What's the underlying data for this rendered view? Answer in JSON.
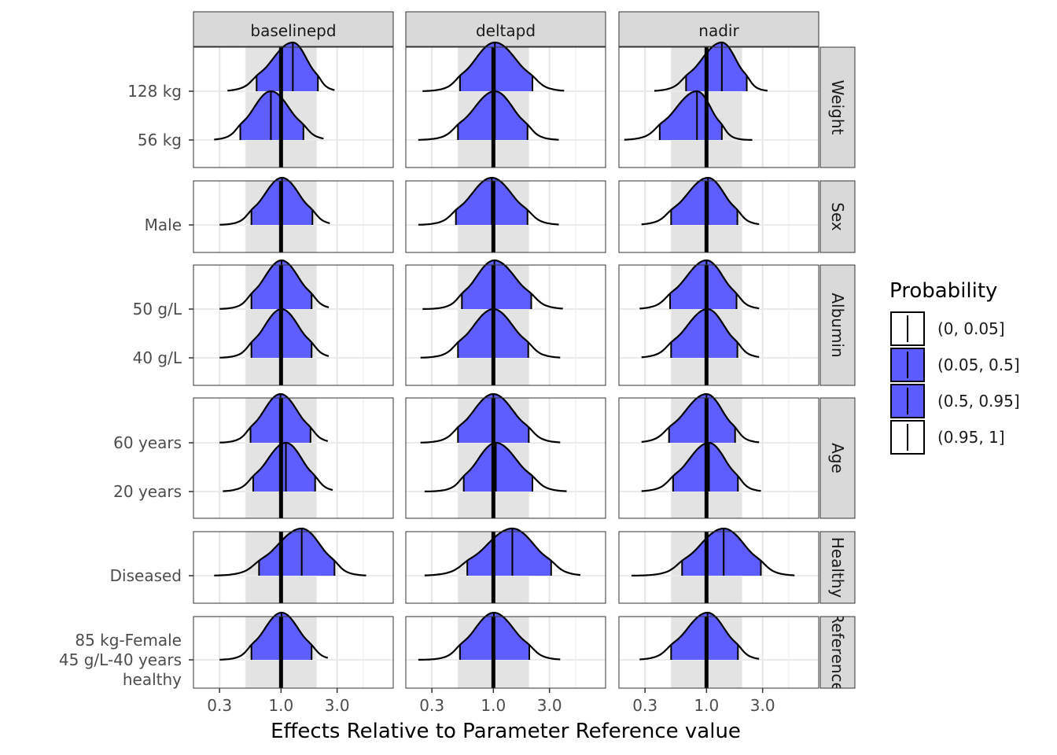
{
  "chart_data": {
    "type": "density-ridge",
    "xlabel": "Effects Relative to Parameter Reference value",
    "x_scale": "log10",
    "xlim": [
      0.18,
      9.0
    ],
    "x_ticks": [
      0.3,
      1.0,
      3.0
    ],
    "x_tick_labels": [
      "0.3",
      "1.0",
      "3.0"
    ],
    "reference_line": 1.0,
    "reference_band": [
      0.5,
      2.0
    ],
    "grid": true,
    "columns": [
      "baselinepd",
      "deltapd",
      "nadir"
    ],
    "rows": [
      {
        "strip": "Weight",
        "levels": [
          "128 kg",
          "56 kg"
        ]
      },
      {
        "strip": "Sex",
        "levels": [
          "Male"
        ]
      },
      {
        "strip": "Albumin",
        "levels": [
          "50 g/L",
          "40 g/L"
        ]
      },
      {
        "strip": "Age",
        "levels": [
          "60 years",
          "20 years"
        ]
      },
      {
        "strip": "Healthy",
        "levels": [
          "Diseased"
        ]
      },
      {
        "strip": "Reference",
        "levels": [
          "85 kg-Female\n45 g/L-40 years\nhealthy"
        ]
      }
    ],
    "series": [
      {
        "column": "baselinepd",
        "row": "Weight",
        "level": "128 kg",
        "median": 1.26,
        "q05": 0.62,
        "q95": 2.06,
        "min": 0.35,
        "max": 2.85
      },
      {
        "column": "baselinepd",
        "row": "Weight",
        "level": "56 kg",
        "median": 0.82,
        "q05": 0.45,
        "q95": 1.55,
        "min": 0.27,
        "max": 2.3
      },
      {
        "column": "baselinepd",
        "row": "Sex",
        "level": "Male",
        "median": 1.02,
        "q05": 0.56,
        "q95": 1.85,
        "min": 0.3,
        "max": 2.6
      },
      {
        "column": "baselinepd",
        "row": "Albumin",
        "level": "50 g/L",
        "median": 1.01,
        "q05": 0.56,
        "q95": 1.82,
        "min": 0.3,
        "max": 2.55
      },
      {
        "column": "baselinepd",
        "row": "Albumin",
        "level": "40 g/L",
        "median": 1.01,
        "q05": 0.56,
        "q95": 1.82,
        "min": 0.3,
        "max": 2.55
      },
      {
        "column": "baselinepd",
        "row": "Age",
        "level": "60 years",
        "median": 0.99,
        "q05": 0.55,
        "q95": 1.78,
        "min": 0.3,
        "max": 2.5
      },
      {
        "column": "baselinepd",
        "row": "Age",
        "level": "20 years",
        "median": 1.1,
        "q05": 0.58,
        "q95": 1.95,
        "min": 0.32,
        "max": 2.75
      },
      {
        "column": "baselinepd",
        "row": "Healthy",
        "level": "Diseased",
        "median": 1.5,
        "q05": 0.65,
        "q95": 2.85,
        "min": 0.27,
        "max": 5.3
      },
      {
        "column": "baselinepd",
        "row": "Reference",
        "level": "85 kg-Female 45 g/L-40 years healthy",
        "median": 1.01,
        "q05": 0.56,
        "q95": 1.82,
        "min": 0.3,
        "max": 2.5
      },
      {
        "column": "deltapd",
        "row": "Weight",
        "level": "128 kg",
        "median": 1.03,
        "q05": 0.52,
        "q95": 2.15,
        "min": 0.25,
        "max": 4.0
      },
      {
        "column": "deltapd",
        "row": "Weight",
        "level": "56 kg",
        "median": 1.03,
        "q05": 0.5,
        "q95": 1.95,
        "min": 0.23,
        "max": 3.6
      },
      {
        "column": "deltapd",
        "row": "Sex",
        "level": "Male",
        "median": 0.97,
        "q05": 0.48,
        "q95": 1.95,
        "min": 0.23,
        "max": 3.6
      },
      {
        "column": "deltapd",
        "row": "Albumin",
        "level": "50 g/L",
        "median": 1.02,
        "q05": 0.54,
        "q95": 2.1,
        "min": 0.25,
        "max": 3.9
      },
      {
        "column": "deltapd",
        "row": "Albumin",
        "level": "40 g/L",
        "median": 1.0,
        "q05": 0.5,
        "q95": 1.98,
        "min": 0.24,
        "max": 3.7
      },
      {
        "column": "deltapd",
        "row": "Age",
        "level": "60 years",
        "median": 1.0,
        "q05": 0.5,
        "q95": 2.0,
        "min": 0.24,
        "max": 3.7
      },
      {
        "column": "deltapd",
        "row": "Age",
        "level": "20 years",
        "median": 1.05,
        "q05": 0.56,
        "q95": 2.15,
        "min": 0.26,
        "max": 4.2
      },
      {
        "column": "deltapd",
        "row": "Healthy",
        "level": "Diseased",
        "median": 1.45,
        "q05": 0.6,
        "q95": 3.1,
        "min": 0.26,
        "max": 5.5
      },
      {
        "column": "deltapd",
        "row": "Reference",
        "level": "85 kg-Female 45 g/L-40 years healthy",
        "median": 1.01,
        "q05": 0.52,
        "q95": 2.02,
        "min": 0.23,
        "max": 3.7
      },
      {
        "column": "nadir",
        "row": "Weight",
        "level": "128 kg",
        "median": 1.35,
        "q05": 0.67,
        "q95": 2.2,
        "min": 0.36,
        "max": 3.3
      },
      {
        "column": "nadir",
        "row": "Weight",
        "level": "56 kg",
        "median": 0.83,
        "q05": 0.4,
        "q95": 1.35,
        "min": 0.2,
        "max": 2.45
      },
      {
        "column": "nadir",
        "row": "Sex",
        "level": "Male",
        "median": 1.03,
        "q05": 0.5,
        "q95": 1.83,
        "min": 0.28,
        "max": 2.8
      },
      {
        "column": "nadir",
        "row": "Albumin",
        "level": "50 g/L",
        "median": 1.0,
        "q05": 0.49,
        "q95": 1.8,
        "min": 0.27,
        "max": 2.8
      },
      {
        "column": "nadir",
        "row": "Albumin",
        "level": "40 g/L",
        "median": 1.02,
        "q05": 0.5,
        "q95": 1.83,
        "min": 0.28,
        "max": 2.8
      },
      {
        "column": "nadir",
        "row": "Age",
        "level": "60 years",
        "median": 1.0,
        "q05": 0.48,
        "q95": 1.75,
        "min": 0.28,
        "max": 2.8
      },
      {
        "column": "nadir",
        "row": "Age",
        "level": "20 years",
        "median": 1.05,
        "q05": 0.52,
        "q95": 1.85,
        "min": 0.28,
        "max": 2.9
      },
      {
        "column": "nadir",
        "row": "Healthy",
        "level": "Diseased",
        "median": 1.4,
        "q05": 0.62,
        "q95": 2.9,
        "min": 0.23,
        "max": 5.6
      },
      {
        "column": "nadir",
        "row": "Reference",
        "level": "85 kg-Female 45 g/L-40 years healthy",
        "median": 1.02,
        "q05": 0.5,
        "q95": 1.85,
        "min": 0.27,
        "max": 2.8
      }
    ],
    "legend": {
      "title": "Probability",
      "position": "right",
      "items": [
        {
          "label": "(0, 0.05]",
          "fill": "#ffffff"
        },
        {
          "label": "(0.05, 0.5]",
          "fill": "#5b5bff"
        },
        {
          "label": "(0.5, 0.95]",
          "fill": "#5b5bff"
        },
        {
          "label": "(0.95, 1]",
          "fill": "#ffffff"
        }
      ]
    },
    "colors": {
      "fill": "#5b5bff",
      "band": "#e3e3e3",
      "strip": "#d9d9d9",
      "grid": "#ebebeb"
    }
  }
}
